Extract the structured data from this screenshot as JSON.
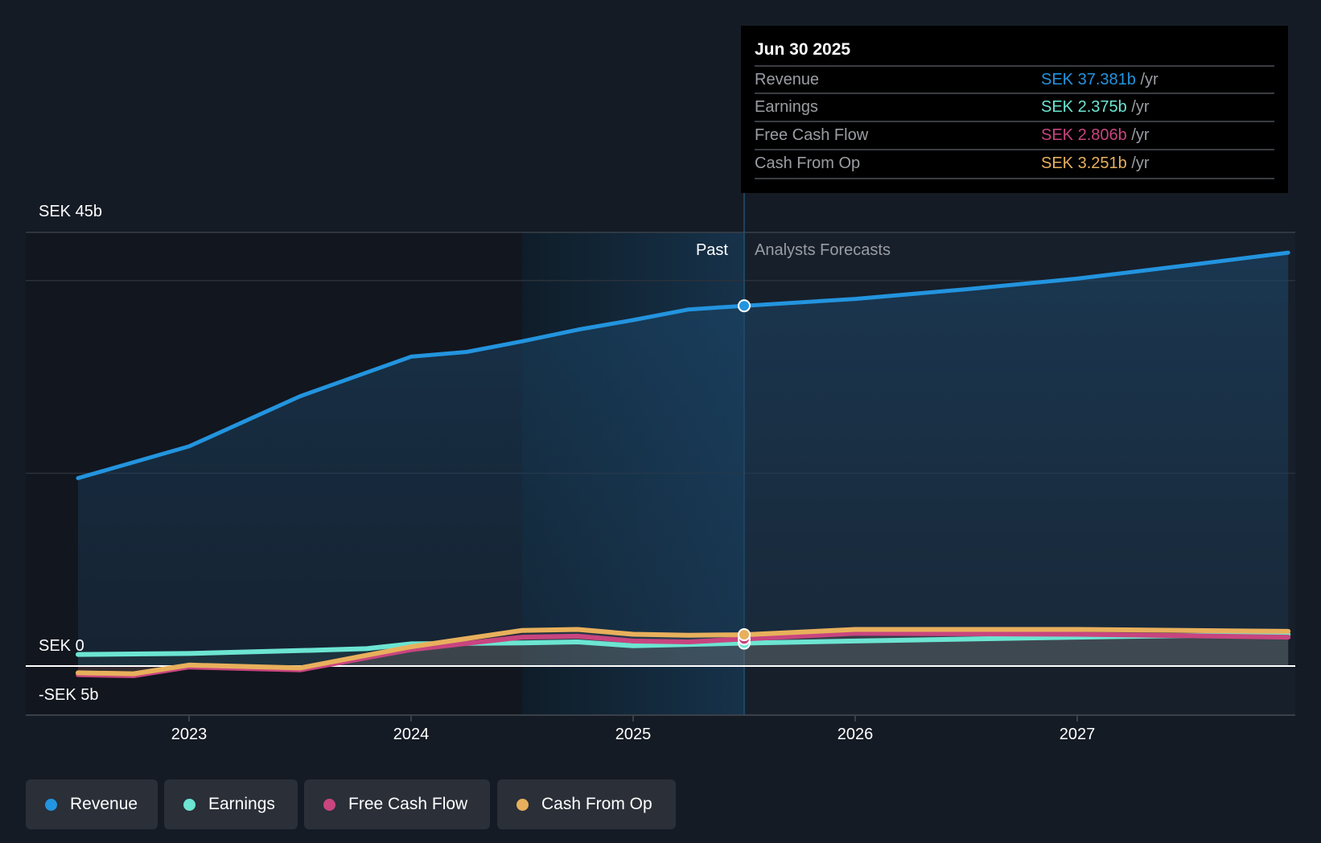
{
  "chart_data": {
    "type": "line",
    "title": "",
    "xlabel": "",
    "ylabel": "",
    "unit": "SEK b",
    "ylim": [
      -5,
      45
    ],
    "xlim": [
      2022.5,
      2027.95
    ],
    "y_tick_labels": [
      "SEK 45b",
      "SEK 0",
      "-SEK 5b"
    ],
    "x_tick_labels": [
      "2023",
      "2024",
      "2025",
      "2026",
      "2027"
    ],
    "x_ticks": [
      2023,
      2024,
      2025,
      2026,
      2027
    ],
    "gridlines": [
      0,
      20,
      40,
      45
    ],
    "past_highlight_start": 2024.5,
    "forecast_start": 2025.5,
    "period_labels": {
      "past": "Past",
      "forecast": "Analysts Forecasts"
    },
    "series": [
      {
        "name": "Revenue",
        "color": "#2394df",
        "x": [
          2022.5,
          2023,
          2023.5,
          2024,
          2024.25,
          2024.5,
          2024.75,
          2025,
          2025.25,
          2025.5,
          2026,
          2026.5,
          2027,
          2027.5,
          2027.95
        ],
        "values": [
          19.5,
          22.8,
          28.0,
          32.1,
          32.6,
          33.7,
          34.9,
          35.9,
          37.0,
          37.381,
          38.1,
          39.1,
          40.2,
          41.6,
          42.9
        ]
      },
      {
        "name": "Earnings",
        "color": "#6ce5d2",
        "x": [
          2022.5,
          2023,
          2023.5,
          2023.8,
          2024,
          2024.5,
          2024.75,
          2025,
          2025.5,
          2026,
          2027,
          2027.95
        ],
        "values": [
          1.2,
          1.3,
          1.6,
          1.8,
          2.3,
          2.4,
          2.5,
          2.1,
          2.375,
          2.6,
          3.0,
          3.3
        ]
      },
      {
        "name": "Free Cash Flow",
        "color": "#c8457f",
        "x": [
          2022.5,
          2022.75,
          2023,
          2023.5,
          2024,
          2024.5,
          2024.75,
          2025,
          2025.25,
          2025.5,
          2026,
          2027,
          2027.95
        ],
        "values": [
          -0.9,
          -1.0,
          -0.1,
          -0.4,
          1.7,
          3.0,
          3.1,
          2.6,
          2.5,
          2.806,
          3.4,
          3.3,
          3.0
        ]
      },
      {
        "name": "Cash From Op",
        "color": "#e8b05c",
        "x": [
          2022.5,
          2022.75,
          2023,
          2023.5,
          2024,
          2024.5,
          2024.75,
          2025,
          2025.25,
          2025.5,
          2026,
          2027,
          2027.95
        ],
        "values": [
          -0.7,
          -0.8,
          0.1,
          -0.2,
          2.0,
          3.7,
          3.8,
          3.3,
          3.2,
          3.251,
          3.8,
          3.8,
          3.6
        ]
      }
    ],
    "legend_placement": "bottom-left"
  },
  "tooltip": {
    "date": "Jun 30 2025",
    "unit": "/yr",
    "rows": [
      {
        "label": "Revenue",
        "value": "SEK 37.381b",
        "color": "#2394df"
      },
      {
        "label": "Earnings",
        "value": "SEK 2.375b",
        "color": "#6ce5d2"
      },
      {
        "label": "Free Cash Flow",
        "value": "SEK 2.806b",
        "color": "#c8457f"
      },
      {
        "label": "Cash From Op",
        "value": "SEK 3.251b",
        "color": "#e8b05c"
      }
    ]
  },
  "legend": [
    {
      "label": "Revenue",
      "color": "#2394df"
    },
    {
      "label": "Earnings",
      "color": "#6ce5d2"
    },
    {
      "label": "Free Cash Flow",
      "color": "#c8457f"
    },
    {
      "label": "Cash From Op",
      "color": "#e8b05c"
    }
  ]
}
